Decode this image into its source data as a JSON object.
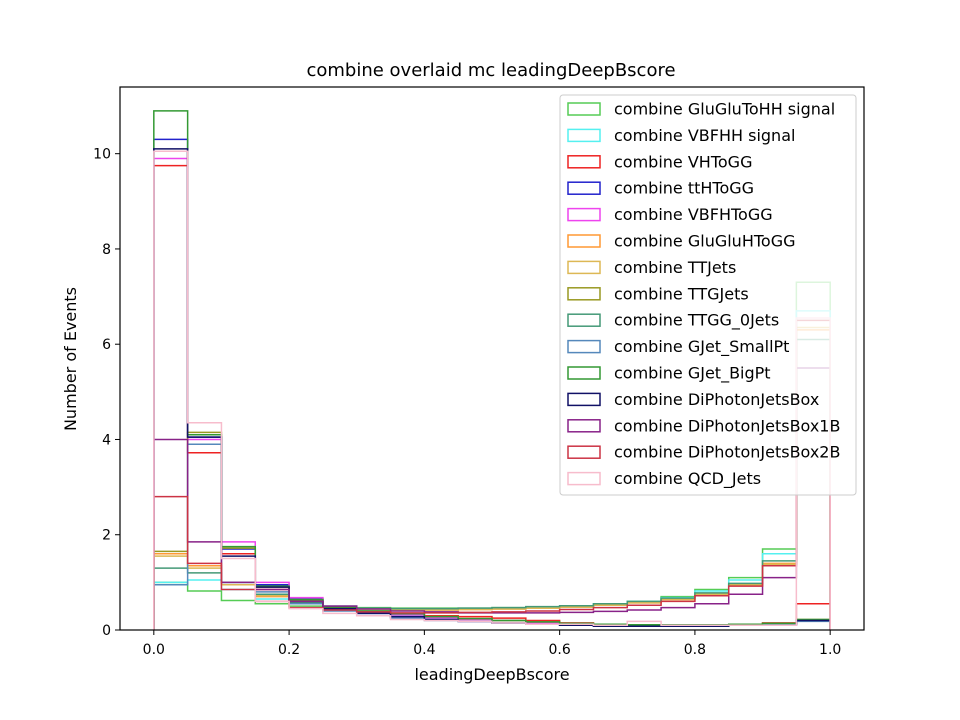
{
  "chart_data": {
    "type": "step-histogram",
    "title": "combine overlaid mc leadingDeepBscore",
    "xlabel": "leadingDeepBscore",
    "ylabel": "Number of Events",
    "xlim": [
      -0.05,
      1.05
    ],
    "ylim": [
      0,
      11.4
    ],
    "x_ticks": [
      0.0,
      0.2,
      0.4,
      0.6,
      0.8,
      1.0
    ],
    "x_tick_labels": [
      "0.0",
      "0.2",
      "0.4",
      "0.6",
      "0.8",
      "1.0"
    ],
    "y_ticks": [
      0,
      2,
      4,
      6,
      8,
      10
    ],
    "y_tick_labels": [
      "0",
      "2",
      "4",
      "6",
      "8",
      "10"
    ],
    "bin_edges": [
      0.0,
      0.05,
      0.1,
      0.15,
      0.2,
      0.25,
      0.3,
      0.35,
      0.4,
      0.45,
      0.5,
      0.55,
      0.6,
      0.65,
      0.7,
      0.75,
      0.8,
      0.85,
      0.9,
      0.95,
      1.0
    ],
    "legend_position": "top-right",
    "grid": false,
    "series": [
      {
        "name": "combine GluGluToHH signal",
        "color": "#55cc55",
        "values": [
          1.0,
          0.82,
          0.62,
          0.55,
          0.5,
          0.48,
          0.47,
          0.46,
          0.46,
          0.46,
          0.47,
          0.48,
          0.5,
          0.54,
          0.6,
          0.7,
          0.85,
          1.1,
          1.7,
          7.3
        ]
      },
      {
        "name": "combine VBFHH signal",
        "color": "#55f0f0",
        "values": [
          1.0,
          1.05,
          0.85,
          0.65,
          0.55,
          0.5,
          0.45,
          0.44,
          0.44,
          0.44,
          0.45,
          0.47,
          0.5,
          0.54,
          0.6,
          0.68,
          0.82,
          1.05,
          1.6,
          6.7
        ]
      },
      {
        "name": "combine VHToGG",
        "color": "#ee2222",
        "values": [
          9.75,
          3.72,
          1.6,
          0.85,
          0.58,
          0.45,
          0.38,
          0.33,
          0.3,
          0.28,
          0.25,
          0.2,
          0.15,
          0.12,
          0.1,
          0.1,
          0.1,
          0.12,
          0.15,
          0.55
        ]
      },
      {
        "name": "combine ttHToGG",
        "color": "#2222cc",
        "values": [
          10.3,
          4.05,
          1.7,
          0.95,
          0.65,
          0.45,
          0.35,
          0.28,
          0.22,
          0.18,
          0.15,
          0.12,
          0.1,
          0.08,
          0.08,
          0.08,
          0.08,
          0.1,
          0.12,
          0.2
        ]
      },
      {
        "name": "combine VBFHToGG",
        "color": "#ee44ee",
        "values": [
          9.9,
          4.0,
          1.85,
          1.0,
          0.68,
          0.5,
          0.4,
          0.32,
          0.26,
          0.22,
          0.2,
          0.15,
          0.12,
          0.1,
          0.1,
          0.1,
          0.1,
          0.12,
          0.12,
          0.2
        ]
      },
      {
        "name": "combine GluGluHToGG",
        "color": "#ff9933",
        "values": [
          1.6,
          1.35,
          0.95,
          0.7,
          0.55,
          0.48,
          0.44,
          0.42,
          0.42,
          0.43,
          0.44,
          0.46,
          0.48,
          0.52,
          0.57,
          0.64,
          0.75,
          0.95,
          1.4,
          6.3
        ]
      },
      {
        "name": "combine TTJets",
        "color": "#ddb855",
        "values": [
          1.55,
          1.3,
          0.95,
          0.72,
          0.56,
          0.48,
          0.44,
          0.42,
          0.42,
          0.43,
          0.44,
          0.46,
          0.48,
          0.52,
          0.57,
          0.64,
          0.75,
          0.95,
          1.38,
          6.35
        ]
      },
      {
        "name": "combine TTGJets",
        "color": "#999922",
        "values": [
          1.65,
          4.15,
          1.72,
          0.9,
          0.62,
          0.47,
          0.4,
          0.34,
          0.28,
          0.24,
          0.2,
          0.17,
          0.14,
          0.12,
          0.11,
          0.11,
          0.11,
          0.12,
          0.14,
          0.22
        ]
      },
      {
        "name": "combine TTGG_0Jets",
        "color": "#449977",
        "values": [
          1.3,
          1.2,
          1.0,
          0.75,
          0.58,
          0.5,
          0.46,
          0.45,
          0.45,
          0.46,
          0.47,
          0.49,
          0.51,
          0.55,
          0.6,
          0.67,
          0.78,
          0.98,
          1.45,
          6.1
        ]
      },
      {
        "name": "combine GJet_SmallPt",
        "color": "#5588bb",
        "values": [
          0.95,
          3.9,
          1.0,
          0.8,
          0.55,
          0.4,
          0.3,
          0.25,
          0.2,
          0.18,
          0.15,
          0.12,
          0.1,
          0.1,
          0.1,
          0.1,
          0.1,
          0.1,
          0.12,
          0.18
        ]
      },
      {
        "name": "combine GJet_BigPt",
        "color": "#339933",
        "values": [
          10.9,
          4.1,
          1.75,
          0.92,
          0.64,
          0.48,
          0.4,
          0.34,
          0.28,
          0.24,
          0.2,
          0.17,
          0.14,
          0.12,
          0.11,
          0.11,
          0.11,
          0.12,
          0.14,
          0.22
        ]
      },
      {
        "name": "combine DiPhotonJetsBox",
        "color": "#111166",
        "values": [
          10.1,
          4.05,
          1.55,
          0.9,
          0.6,
          0.45,
          0.35,
          0.28,
          0.22,
          0.18,
          0.15,
          0.12,
          0.1,
          0.08,
          0.08,
          0.08,
          0.08,
          0.1,
          0.1,
          0.2
        ]
      },
      {
        "name": "combine DiPhotonJetsBox1B",
        "color": "#882288",
        "values": [
          4.0,
          1.85,
          1.0,
          0.85,
          0.6,
          0.5,
          0.44,
          0.4,
          0.38,
          0.36,
          0.36,
          0.36,
          0.37,
          0.39,
          0.42,
          0.47,
          0.55,
          0.75,
          1.1,
          5.5
        ]
      },
      {
        "name": "combine DiPhotonJetsBox2B",
        "color": "#cc3344",
        "values": [
          2.8,
          1.4,
          0.85,
          0.6,
          0.47,
          0.42,
          0.38,
          0.36,
          0.36,
          0.37,
          0.38,
          0.4,
          0.43,
          0.47,
          0.52,
          0.6,
          0.72,
          0.92,
          1.35,
          6.5
        ]
      },
      {
        "name": "combine QCD_Jets",
        "color": "#f7bccc",
        "values": [
          10.05,
          4.35,
          1.5,
          0.6,
          0.45,
          0.35,
          0.3,
          0.22,
          0.2,
          0.18,
          0.15,
          0.12,
          0.12,
          0.1,
          0.18,
          0.1,
          0.1,
          0.1,
          0.1,
          6.55
        ]
      }
    ]
  }
}
